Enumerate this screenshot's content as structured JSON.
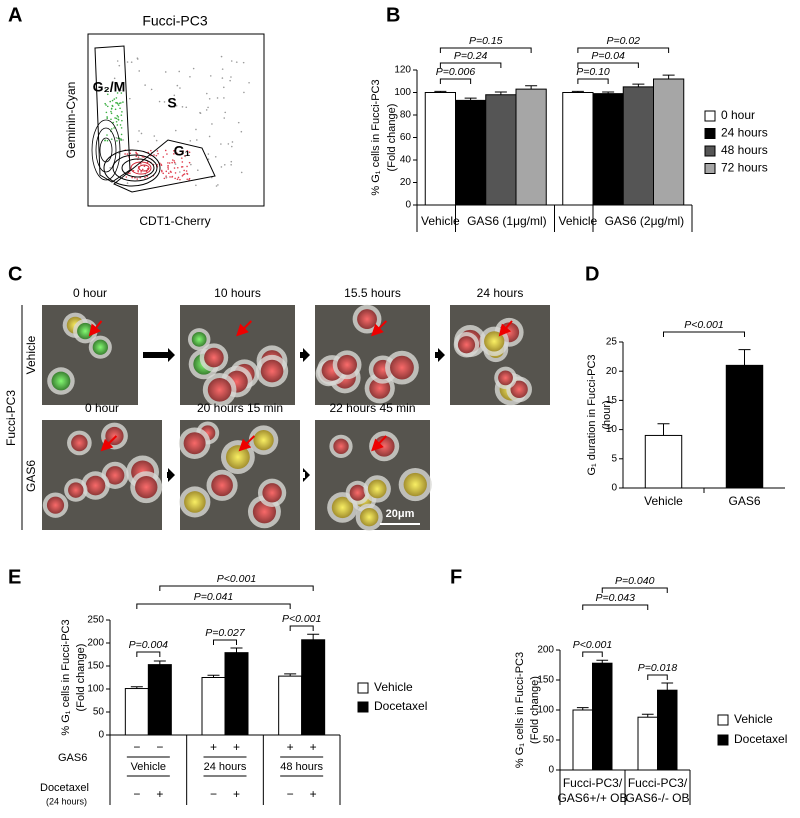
{
  "panels": {
    "A": {
      "letter": "A",
      "title": "Fucci-PC3",
      "ylabel": "Geminin-Cyan",
      "xlabel": "CDT1-Cherry",
      "gates": [
        "G₂/M",
        "S",
        "G₁"
      ]
    },
    "C": {
      "letter": "C",
      "row_label": "Fucci-PC3",
      "rows": [
        {
          "name": "Vehicle",
          "frames": [
            "0 hour",
            "10 hours",
            "15.5 hours",
            "24 hours"
          ]
        },
        {
          "name": "GAS6",
          "frames": [
            "0 hour",
            "20 hours 15 min",
            "22 hours 45 min"
          ]
        }
      ],
      "scale_bar": "20μm"
    }
  },
  "chart_data": [
    {
      "type": "bar",
      "panel": "B",
      "ylabel": [
        "% G₁ cells in Fucci-PC3",
        "(Fold change)"
      ],
      "x_labels": [
        "Vehicle",
        "GAS6 (1μg/ml)",
        "Vehicle",
        "GAS6 (2μg/ml)"
      ],
      "series": [
        {
          "name": "0 hour",
          "color": "#ffffff",
          "values": [
            100,
            100
          ],
          "errors": [
            1,
            1
          ]
        },
        {
          "name": "24 hours",
          "color": "#000000",
          "values": [
            93,
            99
          ],
          "errors": [
            2,
            1.5
          ]
        },
        {
          "name": "48 hours",
          "color": "#555555",
          "values": [
            98,
            105
          ],
          "errors": [
            2.5,
            2.5
          ]
        },
        {
          "name": "72 hours",
          "color": "#a6a6a6",
          "values": [
            103,
            112
          ],
          "errors": [
            3,
            3.5
          ]
        }
      ],
      "ylim": [
        0,
        120
      ],
      "yticks": [
        0,
        20,
        40,
        60,
        80,
        100,
        120
      ],
      "annotations": [
        "P=0.15",
        "P=0.24",
        "P=0.006",
        "P=0.02",
        "P=0.04",
        "P=0.10"
      ]
    },
    {
      "type": "bar",
      "panel": "D",
      "ylabel": [
        "G₁ duration in Fucci-PC3",
        "(hour)"
      ],
      "categories": [
        "Vehicle",
        "GAS6"
      ],
      "values": [
        9,
        21
      ],
      "errors": [
        2,
        2.7
      ],
      "colors": [
        "#ffffff",
        "#000000"
      ],
      "ylim": [
        0,
        25
      ],
      "yticks": [
        0,
        5,
        10,
        15,
        20,
        25
      ],
      "annotations": [
        "P<0.001"
      ]
    },
    {
      "type": "bar",
      "panel": "E",
      "ylabel": [
        "% G₁ cells in Fucci-PC3",
        "(Fold change)"
      ],
      "series": [
        {
          "name": "Vehicle",
          "color": "#ffffff",
          "values": [
            101,
            125,
            128
          ],
          "errors": [
            4,
            5,
            5
          ]
        },
        {
          "name": "Docetaxel",
          "color": "#000000",
          "values": [
            153,
            179,
            207
          ],
          "errors": [
            8,
            10,
            12
          ]
        }
      ],
      "ylim": [
        0,
        250
      ],
      "yticks": [
        0,
        50,
        100,
        150,
        200,
        250
      ],
      "annotations": [
        "P<0.001",
        "P=0.041",
        "P=0.004",
        "P=0.027",
        "P<0.001"
      ],
      "table": {
        "row_labels": [
          "GAS6",
          "Docetaxel",
          "(24 hours)"
        ],
        "gas6": [
          "−",
          "−",
          "+",
          "+",
          "+",
          "+"
        ],
        "groups": [
          "Vehicle",
          "24 hours",
          "48 hours"
        ],
        "docetaxel": [
          "−",
          "+",
          "−",
          "+",
          "−",
          "+"
        ]
      }
    },
    {
      "type": "bar",
      "panel": "F",
      "ylabel": [
        "% G₁ cells in Fucci-PC3",
        "(Fold change)"
      ],
      "categories": [
        [
          "Fucci-PC3/",
          "GAS6+/+ OB"
        ],
        [
          "Fucci-PC3/",
          "GAS6-/- OB"
        ]
      ],
      "series": [
        {
          "name": "Vehicle",
          "color": "#ffffff",
          "values": [
            100,
            88
          ],
          "errors": [
            4,
            5
          ]
        },
        {
          "name": "Docetaxel",
          "color": "#000000",
          "values": [
            178,
            133
          ],
          "errors": [
            5,
            12
          ]
        }
      ],
      "ylim": [
        0,
        200
      ],
      "yticks": [
        0,
        50,
        100,
        150,
        200
      ],
      "annotations": [
        "P=0.040",
        "P=0.043",
        "P<0.001",
        "P=0.018"
      ]
    }
  ]
}
